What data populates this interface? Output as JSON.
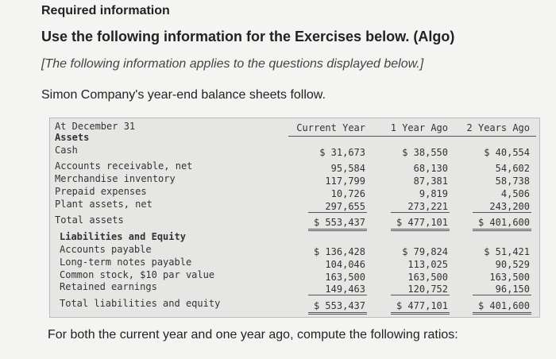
{
  "header": {
    "label": "Required information",
    "title": "Use the following information for the Exercises below. (Algo)",
    "note": "[The following information applies to the questions displayed below.]",
    "intro": "Simon Company's year-end balance sheets follow."
  },
  "table": {
    "columns": [
      "At December 31",
      "Current Year",
      "1 Year Ago",
      "2 Years Ago"
    ],
    "rows": [
      [
        "Assets"
      ],
      [
        "Cash",
        "$ 31,673",
        "$ 38,550",
        "$ 40,554"
      ],
      [
        "Accounts receivable, net",
        "95,584",
        "68,130",
        "54,602"
      ],
      [
        "Merchandise inventory",
        "117,799",
        "87,381",
        "58,738"
      ],
      [
        "Prepaid expenses",
        "10,726",
        "9,819",
        "4,506"
      ],
      [
        "Plant assets, net",
        "297,655",
        "273,221",
        "243,200"
      ],
      [
        "Total assets",
        "$ 553,437",
        "$ 477,101",
        "$ 401,600"
      ],
      [
        "Liabilities and Equity"
      ],
      [
        "Accounts payable",
        "$ 136,428",
        "$ 79,824",
        "$ 51,421"
      ],
      [
        "Long-term notes payable",
        "104,046",
        "113,025",
        "90,529"
      ],
      [
        "Common stock, $10 par value",
        "163,500",
        "163,500",
        "163,500"
      ],
      [
        "Retained earnings",
        "149,463",
        "120,752",
        "96,150"
      ],
      [
        "Total liabilities and equity",
        "$ 553,437",
        "$ 477,101",
        "$ 401,600"
      ]
    ]
  },
  "footer": "For both the current year and one year ago, compute the following ratios:"
}
